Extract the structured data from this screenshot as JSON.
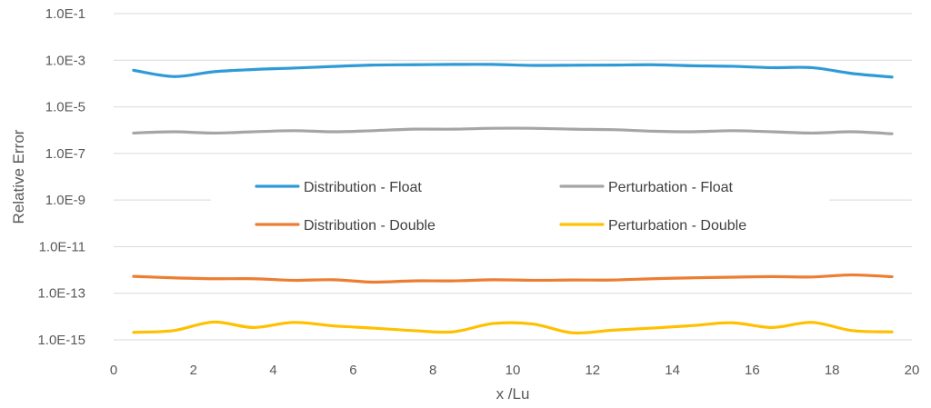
{
  "chart_data": {
    "type": "line",
    "xlabel": "x /Lu",
    "ylabel": "Relative Error",
    "xlim": [
      0,
      20
    ],
    "x_ticks": [
      "0",
      "2",
      "4",
      "6",
      "8",
      "10",
      "12",
      "14",
      "16",
      "18",
      "20"
    ],
    "y_scale": "log",
    "ylim": [
      1e-15,
      0.1
    ],
    "y_ticks": [
      "1.0E-15",
      "1.0E-13",
      "1.0E-11",
      "1.0E-9",
      "1.0E-7",
      "1.0E-5",
      "1.0E-3",
      "1.0E-1"
    ],
    "grid": "horizontal",
    "legend_position": "center",
    "series": [
      {
        "name": "Distribution - Float",
        "color": "#2E9BD6",
        "x": [
          0.5,
          1.5,
          2.5,
          3.5,
          4.5,
          5.5,
          6.5,
          7.5,
          8.5,
          9.5,
          10.5,
          11.5,
          12.5,
          13.5,
          14.5,
          15.5,
          16.5,
          17.5,
          18.5,
          19.5
        ],
        "y": [
          0.00037,
          0.0002,
          0.00032,
          0.0004,
          0.00046,
          0.00054,
          0.00062,
          0.00064,
          0.00066,
          0.00066,
          0.0006,
          0.00061,
          0.00062,
          0.00064,
          0.00058,
          0.00055,
          0.00048,
          0.00048,
          0.00027,
          0.00019
        ]
      },
      {
        "name": "Perturbation - Float",
        "color": "#A5A5A5",
        "x": [
          0.5,
          1.5,
          2.5,
          3.5,
          4.5,
          5.5,
          6.5,
          7.5,
          8.5,
          9.5,
          10.5,
          11.5,
          12.5,
          13.5,
          14.5,
          15.5,
          16.5,
          17.5,
          18.5,
          19.5
        ],
        "y": [
          7.5e-07,
          8.5e-07,
          7.5e-07,
          8.5e-07,
          9.5e-07,
          8.5e-07,
          9.5e-07,
          1.1e-06,
          1.1e-06,
          1.2e-06,
          1.2e-06,
          1.1e-06,
          1.05e-06,
          9e-07,
          8.5e-07,
          9.5e-07,
          8.5e-07,
          7.5e-07,
          8.5e-07,
          7e-07
        ]
      },
      {
        "name": "Distribution - Double",
        "color": "#ED7D31",
        "x": [
          0.5,
          1.5,
          2.5,
          3.5,
          4.5,
          5.5,
          6.5,
          7.5,
          8.5,
          9.5,
          10.5,
          11.5,
          12.5,
          13.5,
          14.5,
          15.5,
          16.5,
          17.5,
          18.5,
          19.5
        ],
        "y": [
          5.3e-13,
          4.6e-13,
          4.2e-13,
          4.2e-13,
          3.6e-13,
          3.8e-13,
          3e-13,
          3.4e-13,
          3.4e-13,
          3.8e-13,
          3.6e-13,
          3.7e-13,
          3.7e-13,
          4.2e-13,
          4.6e-13,
          4.9e-13,
          5.2e-13,
          5e-13,
          6.1e-13,
          5.1e-13
        ]
      },
      {
        "name": "Perturbation - Double",
        "color": "#FFC000",
        "x": [
          0.5,
          1.5,
          2.5,
          3.5,
          4.5,
          5.5,
          6.5,
          7.5,
          8.5,
          9.5,
          10.5,
          11.5,
          12.5,
          13.5,
          14.5,
          15.5,
          16.5,
          17.5,
          18.5,
          19.5
        ],
        "y": [
          2.1e-15,
          2.5e-15,
          5.8e-15,
          3.4e-15,
          5.6e-15,
          4e-15,
          3.2e-15,
          2.5e-15,
          2.2e-15,
          5e-15,
          4.8e-15,
          2e-15,
          2.6e-15,
          3.2e-15,
          4.1e-15,
          5.4e-15,
          3.4e-15,
          5.6e-15,
          2.5e-15,
          2.2e-15
        ]
      }
    ]
  }
}
